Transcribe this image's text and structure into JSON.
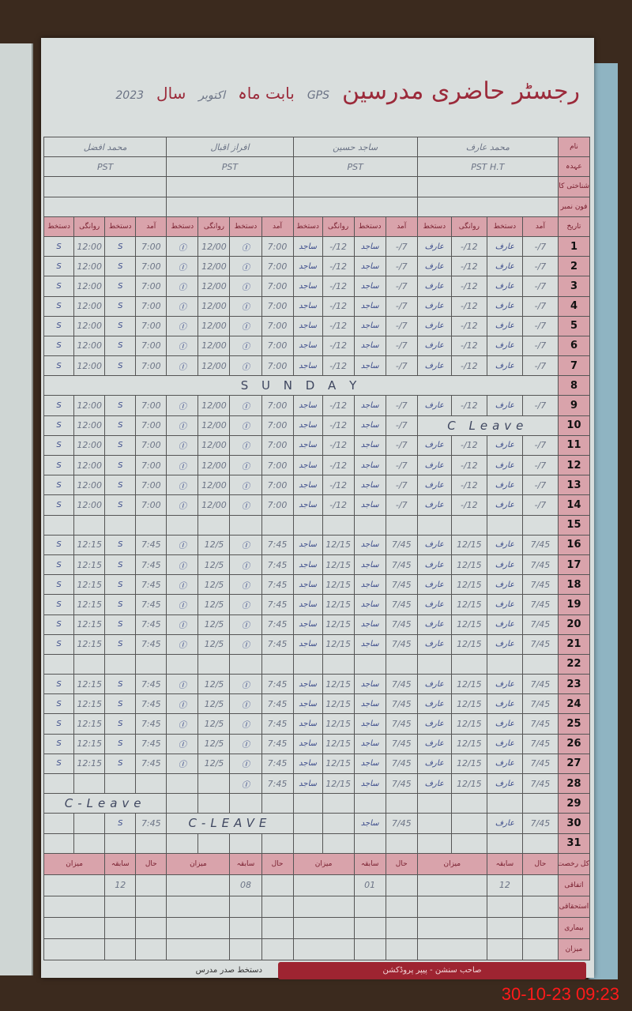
{
  "header": {
    "title": "رجسٹر حاضری مدرسین",
    "school_label": "",
    "school_value": "GPS",
    "month_label": "بابت ماہ",
    "month_value": "اکتوبر",
    "year_label": "سال",
    "year_value": "2023"
  },
  "row_labels": {
    "name": "نام",
    "post": "عہدہ",
    "cnic": "شناختی کارڈ نمبر",
    "phone": "فون نمبر",
    "date": "تاریخ"
  },
  "column_headers": [
    "آمد",
    "دستخط",
    "روانگی",
    "دستخط"
  ],
  "teachers": [
    {
      "name": "محمد عارف",
      "post": "PST   H.T",
      "signature": "عارف"
    },
    {
      "name": "ساجد حسین",
      "post": "PST",
      "signature": "ساجد"
    },
    {
      "name": "افراز اقبال",
      "post": "PST",
      "signature": "Ⓘ"
    },
    {
      "name": "محمد افضل",
      "post": "PST",
      "signature": "S"
    }
  ],
  "rows": [
    {
      "day": "1",
      "v": [
        "7/-",
        "12/-",
        "7/-",
        "12/-",
        "7:00",
        "12/00",
        "7:00",
        "12:00"
      ]
    },
    {
      "day": "2",
      "v": [
        "7/-",
        "12/-",
        "7/-",
        "12/-",
        "7:00",
        "12/00",
        "7:00",
        "12:00"
      ]
    },
    {
      "day": "3",
      "v": [
        "7/-",
        "12/-",
        "7/-",
        "12/-",
        "7:00",
        "12/00",
        "7:00",
        "12:00"
      ]
    },
    {
      "day": "4",
      "v": [
        "7/-",
        "12/-",
        "7/-",
        "12/-",
        "7:00",
        "12/00",
        "7:00",
        "12:00"
      ]
    },
    {
      "day": "5",
      "v": [
        "7/-",
        "12/-",
        "7/-",
        "12/-",
        "7:00",
        "12/00",
        "7:00",
        "12:00"
      ]
    },
    {
      "day": "6",
      "v": [
        "7/-",
        "12/-",
        "7/-",
        "12/-",
        "7:00",
        "12/00",
        "7:00",
        "12:00"
      ]
    },
    {
      "day": "7",
      "v": [
        "7/-",
        "12/-",
        "7/-",
        "12/-",
        "7:00",
        "12/00",
        "7:00",
        "12:00"
      ]
    },
    {
      "day": "8",
      "v": [
        "",
        "",
        "",
        "",
        "",
        "",
        "",
        ""
      ],
      "note": "S U N D A Y",
      "note_span": "all"
    },
    {
      "day": "9",
      "v": [
        "7/-",
        "12/-",
        "7/-",
        "12/-",
        "7:00",
        "12/00",
        "7:00",
        "12:00"
      ]
    },
    {
      "day": "10",
      "v": [
        "",
        "",
        "7/-",
        "12/-",
        "7:00",
        "12/00",
        "7:00",
        "12:00"
      ],
      "note": "C Leave",
      "note_span": 0
    },
    {
      "day": "11",
      "v": [
        "7/-",
        "12/-",
        "7/-",
        "12/-",
        "7:00",
        "12/00",
        "7:00",
        "12:00"
      ]
    },
    {
      "day": "12",
      "v": [
        "7/-",
        "12/-",
        "7/-",
        "12/-",
        "7:00",
        "12/00",
        "7:00",
        "12:00"
      ]
    },
    {
      "day": "13",
      "v": [
        "7/-",
        "12/-",
        "7/-",
        "12/-",
        "7:00",
        "12/00",
        "7:00",
        "12:00"
      ]
    },
    {
      "day": "14",
      "v": [
        "7/-",
        "12/-",
        "7/-",
        "12/-",
        "7:00",
        "12/00",
        "7:00",
        "12:00"
      ]
    },
    {
      "day": "15",
      "v": [
        "",
        "",
        "",
        "",
        "",
        "",
        "",
        ""
      ]
    },
    {
      "day": "16",
      "v": [
        "7/45",
        "12/15",
        "7/45",
        "12/15",
        "7:45",
        "12/5",
        "7:45",
        "12:15"
      ]
    },
    {
      "day": "17",
      "v": [
        "7/45",
        "12/15",
        "7/45",
        "12/15",
        "7:45",
        "12/5",
        "7:45",
        "12:15"
      ]
    },
    {
      "day": "18",
      "v": [
        "7/45",
        "12/15",
        "7/45",
        "12/15",
        "7:45",
        "12/5",
        "7:45",
        "12:15"
      ]
    },
    {
      "day": "19",
      "v": [
        "7/45",
        "12/15",
        "7/45",
        "12/15",
        "7:45",
        "12/5",
        "7:45",
        "12:15"
      ]
    },
    {
      "day": "20",
      "v": [
        "7/45",
        "12/15",
        "7/45",
        "12/15",
        "7:45",
        "12/5",
        "7:45",
        "12:15"
      ]
    },
    {
      "day": "21",
      "v": [
        "7/45",
        "12/15",
        "7/45",
        "12/15",
        "7:45",
        "12/5",
        "7:45",
        "12:15"
      ]
    },
    {
      "day": "22",
      "v": [
        "",
        "",
        "",
        "",
        "",
        "",
        "",
        ""
      ]
    },
    {
      "day": "23",
      "v": [
        "7/45",
        "12/15",
        "7/45",
        "12/15",
        "7:45",
        "12/5",
        "7:45",
        "12:15"
      ]
    },
    {
      "day": "24",
      "v": [
        "7/45",
        "12/15",
        "7/45",
        "12/15",
        "7:45",
        "12/5",
        "7:45",
        "12:15"
      ]
    },
    {
      "day": "25",
      "v": [
        "7/45",
        "12/15",
        "7/45",
        "12/15",
        "7:45",
        "12/5",
        "7:45",
        "12:15"
      ]
    },
    {
      "day": "26",
      "v": [
        "7/45",
        "12/15",
        "7/45",
        "12/15",
        "7:45",
        "12/5",
        "7:45",
        "12:15"
      ]
    },
    {
      "day": "27",
      "v": [
        "7/45",
        "12/15",
        "7/45",
        "12/15",
        "7:45",
        "12/5",
        "7:45",
        "12:15"
      ]
    },
    {
      "day": "28",
      "v": [
        "7/45",
        "12/15",
        "7/45",
        "12/15",
        "7:45",
        "",
        "",
        ""
      ]
    },
    {
      "day": "29",
      "v": [
        "",
        "",
        "",
        "",
        "",
        "",
        "",
        ""
      ],
      "note": "C-Leave",
      "note_span": 3
    },
    {
      "day": "30",
      "v": [
        "7/45",
        "",
        "7/45",
        "",
        "",
        "",
        "7:45",
        ""
      ],
      "note": "C-LEAVE",
      "note_span": 2
    },
    {
      "day": "31",
      "v": [
        "",
        "",
        "",
        "",
        "",
        "",
        "",
        ""
      ]
    }
  ],
  "summary": {
    "corner": "کل رخصت",
    "headers": [
      "حال",
      "سابقہ",
      "میزان"
    ],
    "row_labels": [
      "اتفاقی",
      "استحقاقی",
      "بیماری",
      "میزان"
    ],
    "previous_values": [
      "12",
      "01",
      "08",
      "12"
    ]
  },
  "footer": {
    "head_sign": "دستخط صدر مدرس",
    "publisher": "صاحب سنشن - پیپر پروڈکشن"
  },
  "timestamp": "30-10-23  09:23",
  "colors": {
    "accent": "#9b2a3a",
    "pink": "#d9a3ab",
    "stamp": "#ff1a1a"
  }
}
